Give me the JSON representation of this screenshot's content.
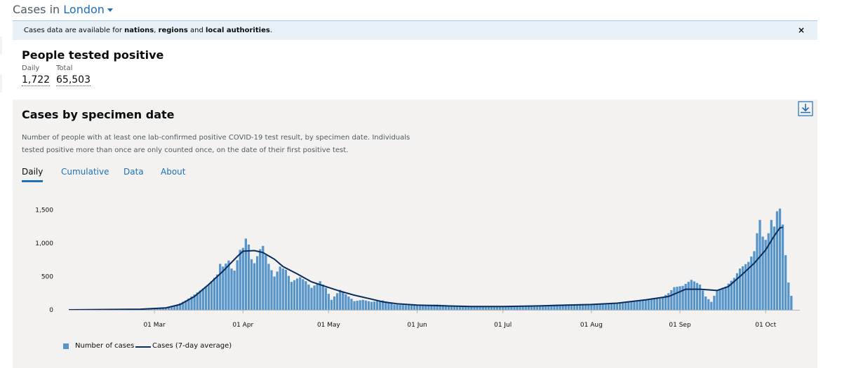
{
  "header": {
    "prefix": "Cases in",
    "location": "London"
  },
  "banner": {
    "text_start": "Cases data are available for ",
    "nations": "nations",
    "sep1": ", ",
    "regions": "regions",
    "sep2": " and ",
    "local": "local authorities",
    "text_end": ".",
    "close": "×"
  },
  "summary": {
    "title": "People tested positive",
    "daily_label": "Daily",
    "daily_value": "1,722",
    "total_label": "Total",
    "total_value": "65,503"
  },
  "card": {
    "title": "Cases by specimen date",
    "description": "Number of people with at least one lab-confirmed positive COVID-19 test result, by specimen date. Individuals tested positive more than once are only counted once, on the date of their first positive test.",
    "tabs": [
      "Daily",
      "Cumulative",
      "Data",
      "About"
    ],
    "active_tab": "Daily"
  },
  "colors": {
    "bar": "#5694ca",
    "line": "#0b2c5a",
    "link": "#1d70b8",
    "card_bg": "#f3f2f1"
  },
  "icons": {
    "download": "download-icon",
    "location_caret": "chevron-down-icon"
  },
  "chart_data": {
    "type": "bar",
    "title": "",
    "xlabel": "",
    "ylabel": "",
    "x_start": "2020-01-31",
    "x_end": "2020-10-13",
    "ylim": [
      0,
      1600
    ],
    "yticks": [
      0,
      500,
      1000,
      1500
    ],
    "ytick_labels": [
      "0",
      "500",
      "1,000",
      "1,500"
    ],
    "xticks": [
      "2020-03-01",
      "2020-04-01",
      "2020-05-01",
      "2020-06-01",
      "2020-07-01",
      "2020-08-01",
      "2020-09-01",
      "2020-10-01"
    ],
    "xtick_labels": [
      "01 Mar",
      "01 Apr",
      "01 May",
      "01 Jun",
      "01 Jul",
      "01 Aug",
      "01 Sep",
      "01 Oct"
    ],
    "grid": false,
    "legend_position": "bottom-left",
    "series": [
      {
        "name": "Number of cases",
        "kind": "bar",
        "points": [
          [
            "2020-02-22",
            5
          ],
          [
            "2020-02-29",
            8
          ],
          [
            "2020-03-05",
            20
          ],
          [
            "2020-03-08",
            60
          ],
          [
            "2020-03-10",
            100
          ],
          [
            "2020-03-12",
            140
          ],
          [
            "2020-03-14",
            200
          ],
          [
            "2020-03-17",
            290
          ],
          [
            "2020-03-20",
            380
          ],
          [
            "2020-03-23",
            530
          ],
          [
            "2020-03-24",
            690
          ],
          [
            "2020-03-25",
            650
          ],
          [
            "2020-03-27",
            740
          ],
          [
            "2020-03-28",
            620
          ],
          [
            "2020-03-29",
            590
          ],
          [
            "2020-03-31",
            900
          ],
          [
            "2020-04-01",
            930
          ],
          [
            "2020-04-02",
            1070
          ],
          [
            "2020-04-03",
            980
          ],
          [
            "2020-04-04",
            760
          ],
          [
            "2020-04-05",
            700
          ],
          [
            "2020-04-07",
            910
          ],
          [
            "2020-04-08",
            960
          ],
          [
            "2020-04-10",
            690
          ],
          [
            "2020-04-12",
            500
          ],
          [
            "2020-04-14",
            650
          ],
          [
            "2020-04-15",
            620
          ],
          [
            "2020-04-16",
            600
          ],
          [
            "2020-04-18",
            420
          ],
          [
            "2020-04-20",
            470
          ],
          [
            "2020-04-21",
            490
          ],
          [
            "2020-04-23",
            430
          ],
          [
            "2020-04-25",
            330
          ],
          [
            "2020-04-27",
            400
          ],
          [
            "2020-04-28",
            430
          ],
          [
            "2020-04-30",
            330
          ],
          [
            "2020-05-02",
            150
          ],
          [
            "2020-05-05",
            300
          ],
          [
            "2020-05-08",
            200
          ],
          [
            "2020-05-10",
            130
          ],
          [
            "2020-05-13",
            150
          ],
          [
            "2020-05-16",
            120
          ],
          [
            "2020-05-20",
            140
          ],
          [
            "2020-05-24",
            80
          ],
          [
            "2020-05-28",
            70
          ],
          [
            "2020-06-01",
            70
          ],
          [
            "2020-06-08",
            80
          ],
          [
            "2020-06-15",
            60
          ],
          [
            "2020-06-22",
            50
          ],
          [
            "2020-07-01",
            50
          ],
          [
            "2020-07-10",
            60
          ],
          [
            "2020-07-20",
            80
          ],
          [
            "2020-08-01",
            90
          ],
          [
            "2020-08-08",
            100
          ],
          [
            "2020-08-15",
            120
          ],
          [
            "2020-08-20",
            150
          ],
          [
            "2020-08-25",
            170
          ],
          [
            "2020-08-28",
            250
          ],
          [
            "2020-08-30",
            340
          ],
          [
            "2020-09-02",
            360
          ],
          [
            "2020-09-05",
            450
          ],
          [
            "2020-09-08",
            380
          ],
          [
            "2020-09-10",
            200
          ],
          [
            "2020-09-12",
            120
          ],
          [
            "2020-09-14",
            300
          ],
          [
            "2020-09-17",
            350
          ],
          [
            "2020-09-20",
            480
          ],
          [
            "2020-09-22",
            620
          ],
          [
            "2020-09-25",
            720
          ],
          [
            "2020-09-27",
            880
          ],
          [
            "2020-09-28",
            1150
          ],
          [
            "2020-09-29",
            1350
          ],
          [
            "2020-09-30",
            1100
          ],
          [
            "2020-10-01",
            1050
          ],
          [
            "2020-10-02",
            1150
          ],
          [
            "2020-10-03",
            1350
          ],
          [
            "2020-10-04",
            1250
          ],
          [
            "2020-10-05",
            1480
          ],
          [
            "2020-10-06",
            1520
          ],
          [
            "2020-10-07",
            1280
          ],
          [
            "2020-10-08",
            820
          ],
          [
            "2020-10-09",
            410
          ],
          [
            "2020-10-10",
            210
          ]
        ]
      },
      {
        "name": "Cases (7-day average)",
        "kind": "line",
        "points": [
          [
            "2020-01-31",
            0
          ],
          [
            "2020-02-25",
            10
          ],
          [
            "2020-03-05",
            30
          ],
          [
            "2020-03-10",
            80
          ],
          [
            "2020-03-15",
            200
          ],
          [
            "2020-03-20",
            380
          ],
          [
            "2020-03-25",
            580
          ],
          [
            "2020-03-30",
            800
          ],
          [
            "2020-04-01",
            880
          ],
          [
            "2020-04-05",
            890
          ],
          [
            "2020-04-08",
            860
          ],
          [
            "2020-04-12",
            760
          ],
          [
            "2020-04-15",
            650
          ],
          [
            "2020-04-20",
            540
          ],
          [
            "2020-04-25",
            420
          ],
          [
            "2020-04-30",
            350
          ],
          [
            "2020-05-05",
            280
          ],
          [
            "2020-05-10",
            220
          ],
          [
            "2020-05-15",
            170
          ],
          [
            "2020-05-20",
            120
          ],
          [
            "2020-05-25",
            90
          ],
          [
            "2020-06-01",
            70
          ],
          [
            "2020-06-10",
            60
          ],
          [
            "2020-06-20",
            50
          ],
          [
            "2020-07-01",
            50
          ],
          [
            "2020-07-15",
            60
          ],
          [
            "2020-08-01",
            80
          ],
          [
            "2020-08-10",
            100
          ],
          [
            "2020-08-20",
            150
          ],
          [
            "2020-08-28",
            200
          ],
          [
            "2020-09-03",
            310
          ],
          [
            "2020-09-08",
            310
          ],
          [
            "2020-09-14",
            290
          ],
          [
            "2020-09-18",
            350
          ],
          [
            "2020-09-23",
            540
          ],
          [
            "2020-09-27",
            700
          ],
          [
            "2020-10-01",
            900
          ],
          [
            "2020-10-04",
            1110
          ],
          [
            "2020-10-06",
            1230
          ],
          [
            "2020-10-07",
            1240
          ]
        ]
      }
    ]
  }
}
